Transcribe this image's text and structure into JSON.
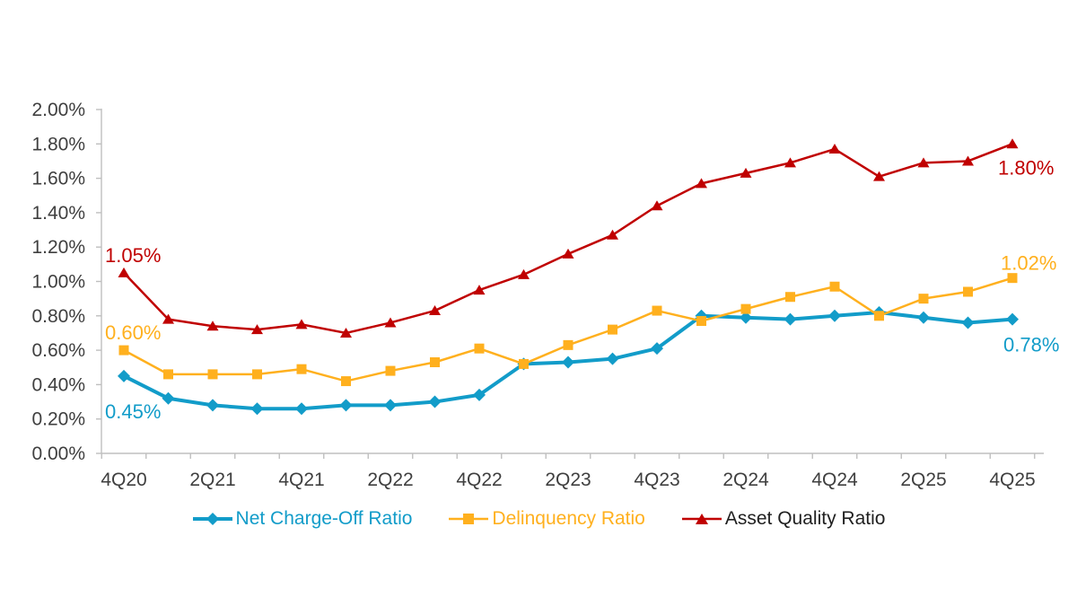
{
  "chart_data": {
    "type": "line",
    "title": "",
    "grid": false,
    "legend_position": "bottom",
    "axis_color": "#BFBFBF",
    "text_color": "#3F3F3F",
    "x_categories": [
      "4Q20",
      "1Q21",
      "2Q21",
      "3Q21",
      "4Q21",
      "1Q22",
      "2Q22",
      "3Q22",
      "4Q22",
      "1Q23",
      "2Q23",
      "3Q23",
      "4Q23",
      "1Q24",
      "2Q24",
      "3Q24",
      "4Q24",
      "1Q25",
      "2Q25",
      "3Q25",
      "4Q25"
    ],
    "x_labels_shown_every": 2,
    "y_axis": {
      "min": 0,
      "max": 2,
      "tick_step": 0.2,
      "ticks": [
        {
          "v": 0.0,
          "label": "0.00%"
        },
        {
          "v": 0.2,
          "label": "0.20%"
        },
        {
          "v": 0.4,
          "label": "0.40%"
        },
        {
          "v": 0.6,
          "label": "0.60%"
        },
        {
          "v": 0.8,
          "label": "0.80%"
        },
        {
          "v": 1.0,
          "label": "1.00%"
        },
        {
          "v": 1.2,
          "label": "1.20%"
        },
        {
          "v": 1.4,
          "label": "1.40%"
        },
        {
          "v": 1.6,
          "label": "1.60%"
        },
        {
          "v": 1.8,
          "label": "1.80%"
        },
        {
          "v": 2.0,
          "label": "2.00%"
        }
      ]
    },
    "series": [
      {
        "id": "net_charge_off",
        "name": "Net Charge-Off Ratio",
        "color": "#129CC9",
        "legend_text_color": "#129CC9",
        "marker": "diamond",
        "line_width": 4,
        "values": [
          0.45,
          0.32,
          0.28,
          0.26,
          0.26,
          0.28,
          0.28,
          0.3,
          0.34,
          0.52,
          0.53,
          0.55,
          0.61,
          0.8,
          0.79,
          0.78,
          0.8,
          0.82,
          0.79,
          0.76,
          0.78
        ],
        "first_point_label": "0.45%",
        "last_point_label": "0.78%"
      },
      {
        "id": "delinquency",
        "name": "Delinquency Ratio",
        "color": "#FFB01E",
        "legend_text_color": "#FFB01E",
        "marker": "square",
        "line_width": 2.5,
        "values": [
          0.6,
          0.46,
          0.46,
          0.46,
          0.49,
          0.42,
          0.48,
          0.53,
          0.61,
          0.52,
          0.63,
          0.72,
          0.83,
          0.77,
          0.84,
          0.91,
          0.97,
          0.8,
          0.9,
          0.94,
          1.02
        ],
        "first_point_label": "0.60%",
        "last_point_label": "1.02%"
      },
      {
        "id": "asset_quality",
        "name": "Asset Quality Ratio",
        "color": "#C00000",
        "legend_text_color": "#1F1F1F",
        "marker": "triangle",
        "line_width": 2.5,
        "values": [
          1.05,
          0.78,
          0.74,
          0.72,
          0.75,
          0.7,
          0.76,
          0.83,
          0.95,
          1.04,
          1.16,
          1.27,
          1.44,
          1.57,
          1.63,
          1.69,
          1.77,
          1.61,
          1.69,
          1.7,
          1.8
        ],
        "first_point_label": "1.05%",
        "last_point_label": "1.80%"
      }
    ]
  }
}
